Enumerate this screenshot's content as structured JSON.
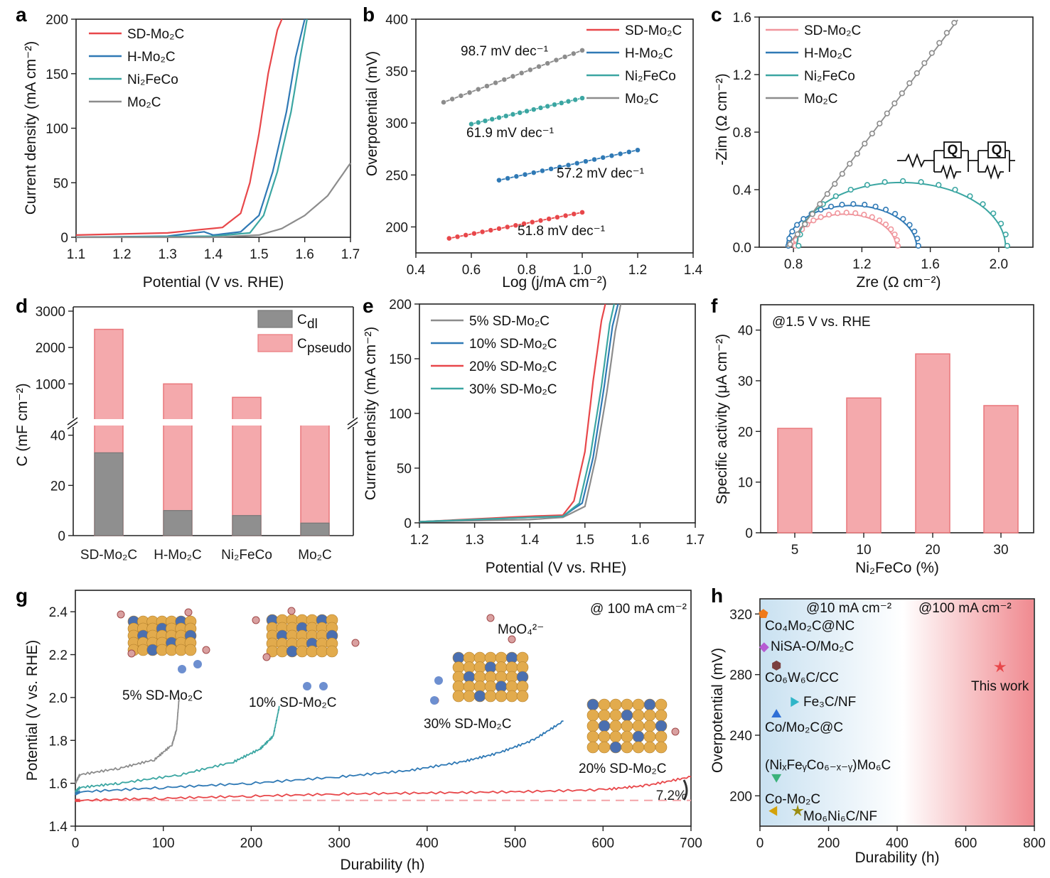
{
  "colors": {
    "red": "#e8474a",
    "blue": "#2f79b5",
    "teal": "#3ba6a2",
    "gray": "#8c8c8c",
    "pink_bar": "#f4a9ac",
    "pink_edge": "#e9777b",
    "dark_bar": "#8f8f8f"
  },
  "chart_data": [
    {
      "id": "a",
      "panel_label": "a",
      "type": "line",
      "xlabel": "Potential (V vs. RHE)",
      "ylabel": "Current density (mA cm⁻²)",
      "xlim": [
        1.1,
        1.7
      ],
      "ylim": [
        0,
        200
      ],
      "xticks": [
        "1.1",
        "1.2",
        "1.3",
        "1.4",
        "1.5",
        "1.6",
        "1.7"
      ],
      "yticks": [
        "0",
        "50",
        "100",
        "150",
        "200"
      ],
      "series": [
        {
          "name": "SD-Mo₂C",
          "color": "red",
          "x": [
            1.1,
            1.3,
            1.42,
            1.46,
            1.48,
            1.5,
            1.52,
            1.54,
            1.55
          ],
          "y": [
            2,
            4,
            9,
            22,
            50,
            95,
            150,
            190,
            200
          ]
        },
        {
          "name": "H-Mo₂C",
          "color": "blue",
          "x": [
            1.1,
            1.3,
            1.38,
            1.4,
            1.46,
            1.5,
            1.53,
            1.56,
            1.58,
            1.6
          ],
          "y": [
            0,
            1,
            5,
            2,
            5,
            20,
            60,
            115,
            165,
            200
          ]
        },
        {
          "name": "Ni₂FeCo",
          "color": "teal",
          "x": [
            1.1,
            1.4,
            1.48,
            1.51,
            1.54,
            1.57,
            1.59,
            1.605
          ],
          "y": [
            0,
            1,
            4,
            20,
            60,
            115,
            165,
            200
          ]
        },
        {
          "name": "Mo₂C",
          "color": "gray",
          "x": [
            1.1,
            1.4,
            1.5,
            1.55,
            1.6,
            1.65,
            1.7
          ],
          "y": [
            0,
            0,
            2,
            8,
            20,
            38,
            68
          ]
        }
      ]
    },
    {
      "id": "b",
      "panel_label": "b",
      "type": "scatter-line",
      "xlabel": "Log (j/mA cm⁻²)",
      "ylabel": "Overpotential (mV)",
      "xlim": [
        0.4,
        1.4
      ],
      "ylim": [
        175,
        400
      ],
      "xticks": [
        "0.4",
        "0.6",
        "0.8",
        "1.0",
        "1.2",
        "1.4"
      ],
      "yticks": [
        "200",
        "250",
        "300",
        "350",
        "400"
      ],
      "series": [
        {
          "name": "SD-Mo₂C",
          "color": "red",
          "x": [
            0.52,
            1.0
          ],
          "y": [
            189,
            214
          ],
          "slope_label": "51.8 mV dec⁻¹"
        },
        {
          "name": "H-Mo₂C",
          "color": "blue",
          "x": [
            0.7,
            1.2
          ],
          "y": [
            245,
            274
          ],
          "slope_label": "57.2 mV dec⁻¹"
        },
        {
          "name": "Ni₂FeCo",
          "color": "teal",
          "x": [
            0.6,
            1.0
          ],
          "y": [
            299,
            324
          ],
          "slope_label": "61.9 mV dec⁻¹"
        },
        {
          "name": "Mo₂C",
          "color": "gray",
          "x": [
            0.5,
            1.0
          ],
          "y": [
            320,
            370
          ],
          "slope_label": "98.7 mV dec⁻¹"
        }
      ]
    },
    {
      "id": "c",
      "panel_label": "c",
      "type": "nyquist",
      "xlabel": "Zre (Ω cm⁻²)",
      "ylabel": "-Zim (Ω cm⁻²)",
      "xlim": [
        0.6,
        2.2
      ],
      "ylim": [
        0,
        1.6
      ],
      "xticks": [
        "0.8",
        "1.2",
        "1.6",
        "2.0"
      ],
      "yticks": [
        "0.0",
        "0.4",
        "0.8",
        "1.2",
        "1.6"
      ],
      "circuit_label": "Q",
      "series": [
        {
          "name": "SD-Mo₂C",
          "color": "pink",
          "start": 0.8,
          "end": 1.4,
          "peak": 0.23
        },
        {
          "name": "H-Mo₂C",
          "color": "blue",
          "start": 0.76,
          "end": 1.52,
          "peak": 0.29
        },
        {
          "name": "Ni₂FeCo",
          "color": "teal",
          "start": 0.82,
          "end": 2.04,
          "peak": 0.45
        },
        {
          "name": "Mo₂C",
          "color": "gray",
          "x": [
            0.76,
            1.76
          ],
          "y": [
            0,
            1.58
          ]
        }
      ]
    },
    {
      "id": "d",
      "panel_label": "d",
      "type": "bar-stacked",
      "ylabel": "C (mF cm⁻²)",
      "categories": [
        "SD-Mo₂C",
        "H-Mo₂C",
        "Ni₂FeCo",
        "Mo₂C"
      ],
      "lower_axis": {
        "ylim": [
          0,
          45
        ],
        "yticks": [
          "0",
          "20",
          "40"
        ]
      },
      "upper_axis": {
        "ylim": [
          500,
          3000
        ],
        "yticks": [
          "1000",
          "2000",
          "3000"
        ]
      },
      "series": [
        {
          "name": "C_dl",
          "legend_main": "C",
          "legend_sub": "dl",
          "color": "dark_bar",
          "values": [
            33,
            10,
            8,
            5
          ]
        },
        {
          "name": "C_pseudo",
          "legend_main": "C",
          "legend_sub": "pseudo",
          "color": "pink_bar",
          "totals": [
            2500,
            1000,
            630,
            45
          ]
        }
      ]
    },
    {
      "id": "e",
      "panel_label": "e",
      "type": "line",
      "xlabel": "Potential (V vs. RHE)",
      "ylabel": "Current density (mA cm⁻²)",
      "xlim": [
        1.2,
        1.7
      ],
      "ylim": [
        0,
        200
      ],
      "xticks": [
        "1.2",
        "1.3",
        "1.4",
        "1.5",
        "1.6",
        "1.7"
      ],
      "yticks": [
        "0",
        "50",
        "100",
        "150",
        "200"
      ],
      "series": [
        {
          "name": "5% SD-Mo₂C",
          "color": "gray",
          "x": [
            1.2,
            1.4,
            1.46,
            1.5,
            1.52,
            1.54,
            1.555,
            1.565
          ],
          "y": [
            1,
            3,
            5,
            15,
            60,
            120,
            175,
            200
          ]
        },
        {
          "name": "10% SD-Mo₂C",
          "color": "blue",
          "x": [
            1.2,
            1.4,
            1.46,
            1.495,
            1.515,
            1.535,
            1.55,
            1.56
          ],
          "y": [
            1,
            5,
            6,
            18,
            60,
            125,
            180,
            200
          ]
        },
        {
          "name": "20% SD-Mo₂C",
          "color": "red",
          "x": [
            1.2,
            1.4,
            1.46,
            1.48,
            1.5,
            1.515,
            1.53,
            1.537
          ],
          "y": [
            1,
            6,
            7,
            20,
            65,
            130,
            185,
            200
          ]
        },
        {
          "name": "30% SD-Mo₂C",
          "color": "teal",
          "x": [
            1.2,
            1.4,
            1.46,
            1.49,
            1.51,
            1.53,
            1.545,
            1.553
          ],
          "y": [
            1,
            5,
            6,
            18,
            62,
            125,
            182,
            200
          ]
        }
      ]
    },
    {
      "id": "f",
      "panel_label": "f",
      "type": "bar",
      "title": "@1.5 V vs. RHE",
      "xlabel": "Ni₂FeCo (%)",
      "ylabel": "Specific activity (μA cm⁻²)",
      "categories": [
        "5",
        "10",
        "20",
        "30"
      ],
      "values": [
        20.6,
        26.6,
        35.3,
        25.1
      ],
      "ylim": [
        0,
        45
      ],
      "yticks": [
        "0",
        "10",
        "20",
        "30",
        "40"
      ]
    },
    {
      "id": "g",
      "panel_label": "g",
      "type": "line",
      "title": "@ 100 mA cm⁻²",
      "xlabel": "Durability (h)",
      "ylabel": "Potential (V vs. RHE)",
      "xlim": [
        0,
        700
      ],
      "ylim": [
        1.4,
        2.5
      ],
      "xticks": [
        "0",
        "100",
        "200",
        "300",
        "400",
        "500",
        "600",
        "700"
      ],
      "yticks": [
        "1.4",
        "1.6",
        "1.8",
        "2.0",
        "2.2",
        "2.4"
      ],
      "annotation_ion": "MoO₄²⁻",
      "annotation_pct": "7.2%",
      "series": [
        {
          "name": "5% SD-Mo₂C",
          "color": "gray",
          "x": [
            0,
            5,
            50,
            90,
            110,
            115,
            118
          ],
          "y": [
            1.6,
            1.64,
            1.67,
            1.71,
            1.78,
            1.85,
            2.0
          ]
        },
        {
          "name": "10% SD-Mo₂C",
          "color": "teal",
          "x": [
            0,
            5,
            50,
            120,
            180,
            210,
            225,
            232
          ],
          "y": [
            1.56,
            1.58,
            1.6,
            1.64,
            1.7,
            1.76,
            1.82,
            1.96
          ]
        },
        {
          "name": "30% SD-Mo₂C",
          "color": "blue",
          "x": [
            0,
            5,
            100,
            200,
            300,
            380,
            440,
            480,
            520,
            555
          ],
          "y": [
            1.55,
            1.56,
            1.58,
            1.6,
            1.63,
            1.66,
            1.7,
            1.74,
            1.8,
            1.89
          ]
        },
        {
          "name": "20% SD-Mo₂C",
          "color": "red",
          "x": [
            0,
            5,
            100,
            200,
            300,
            400,
            500,
            600,
            650,
            700
          ],
          "y": [
            1.52,
            1.52,
            1.53,
            1.54,
            1.55,
            1.555,
            1.56,
            1.57,
            1.59,
            1.63
          ]
        }
      ],
      "labels": [
        "5% SD-Mo₂C",
        "10% SD-Mo₂C",
        "30% SD-Mo₂C",
        "20% SD-Mo₂C"
      ]
    },
    {
      "id": "h",
      "panel_label": "h",
      "type": "scatter",
      "xlabel": "Durability (h)",
      "ylabel": "Overpotential (mV)",
      "xlim": [
        0,
        800
      ],
      "ylim": [
        180,
        330
      ],
      "xticks": [
        "0",
        "200",
        "400",
        "600",
        "800"
      ],
      "yticks": [
        "200",
        "240",
        "280",
        "320"
      ],
      "region_labels": [
        "@10 mA cm⁻²",
        "@100 mA cm⁻²"
      ],
      "points": [
        {
          "name": "Co₄Mo₂C@NC",
          "x": 10,
          "y": 320,
          "marker": "pentagon",
          "color": "#f07a1a"
        },
        {
          "name": "NiSA-O/Mo₂C",
          "x": 12,
          "y": 298,
          "marker": "diamond",
          "color": "#b65bd3"
        },
        {
          "name": "Co₆W₆C/CC",
          "x": 48,
          "y": 286,
          "marker": "hexagon",
          "color": "#7b3f3f"
        },
        {
          "name": "Fe₃C/NF",
          "x": 100,
          "y": 262,
          "marker": "triangle-right",
          "color": "#2fb5c8"
        },
        {
          "name": "Co/Mo₂C@C",
          "x": 48,
          "y": 254,
          "marker": "triangle-up",
          "color": "#2f6fd6"
        },
        {
          "name": "(NiₓFeᵧCo₆₋ₓ₋ᵧ)Mo₆C",
          "x": 48,
          "y": 212,
          "marker": "triangle-down",
          "color": "#3bb27a"
        },
        {
          "name": "Co-Mo₂C",
          "x": 40,
          "y": 190,
          "marker": "triangle-left",
          "color": "#d4a20a"
        },
        {
          "name": "Mo₆Ni₆C/NF",
          "x": 110,
          "y": 190,
          "marker": "star",
          "color": "#9a8d12"
        },
        {
          "name": "This work",
          "x": 700,
          "y": 285,
          "marker": "star",
          "color": "#e8474a"
        }
      ]
    }
  ]
}
